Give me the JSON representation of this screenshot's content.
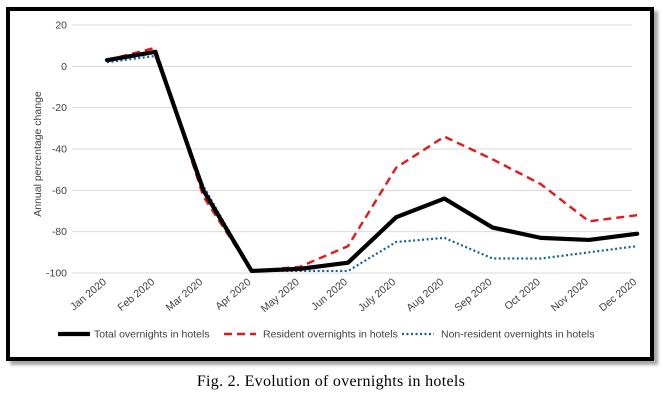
{
  "caption": "Fig. 2. Evolution of overnights in hotels",
  "chart_data": {
    "type": "line",
    "title": "",
    "xlabel": "",
    "ylabel": "Annual percentage change",
    "ylim": [
      -100,
      20
    ],
    "yticks": [
      20,
      0,
      -20,
      -40,
      -60,
      -80,
      -100
    ],
    "grid": true,
    "legend": "bottom",
    "categories": [
      "Jan 2020",
      "Feb 2020",
      "Mar 2020",
      "Apr 2020",
      "May 2020",
      "Jun 2020",
      "July 2020",
      "Aug 2020",
      "Sep 2020",
      "Oct 2020",
      "Nov 2020",
      "Dec 2020"
    ],
    "series": [
      {
        "name": "Total overnights in hotels",
        "color": "#000000",
        "style": "solid",
        "values": [
          3,
          7,
          -60,
          -99,
          -98,
          -95,
          -73,
          -64,
          -78,
          -83,
          -84,
          -81
        ]
      },
      {
        "name": "Resident overnights in hotels",
        "color": "#e31a1c",
        "style": "dashed",
        "values": [
          3,
          9,
          -63,
          -99,
          -97,
          -87,
          -49,
          -34,
          -45,
          -57,
          -75,
          -72
        ]
      },
      {
        "name": "Non-resident overnights in hotels",
        "color": "#0f5fa8",
        "style": "dotted",
        "values": [
          2,
          5,
          -58,
          -99,
          -99,
          -99,
          -85,
          -83,
          -93,
          -93,
          -90,
          -87
        ]
      }
    ]
  }
}
